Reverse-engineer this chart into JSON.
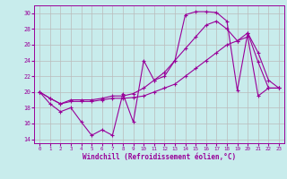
{
  "xlabel": "Windchill (Refroidissement éolien,°C)",
  "bg_color": "#c8ecec",
  "grid_color": "#aaaaaa",
  "line_color": "#990099",
  "xlim": [
    -0.5,
    23.5
  ],
  "ylim": [
    13.5,
    31.0
  ],
  "xticks": [
    0,
    1,
    2,
    3,
    4,
    5,
    6,
    7,
    8,
    9,
    10,
    11,
    12,
    13,
    14,
    15,
    16,
    17,
    18,
    19,
    20,
    21,
    22,
    23
  ],
  "yticks": [
    14,
    16,
    18,
    20,
    22,
    24,
    26,
    28,
    30
  ],
  "line1_y": [
    20.0,
    18.5,
    17.5,
    18.0,
    16.2,
    14.5,
    15.2,
    14.5,
    19.8,
    16.2,
    24.0,
    21.5,
    22.0,
    24.0,
    29.8,
    30.2,
    30.2,
    30.1,
    29.0,
    20.2,
    27.5,
    23.8,
    20.5,
    20.5
  ],
  "line2_y": [
    20.0,
    19.2,
    18.5,
    18.8,
    18.8,
    18.8,
    19.0,
    19.2,
    19.2,
    19.3,
    19.5,
    20.0,
    20.5,
    21.0,
    22.0,
    23.0,
    24.0,
    25.0,
    26.0,
    26.5,
    27.0,
    19.5,
    20.5,
    20.5
  ],
  "line3_y": [
    20.0,
    19.2,
    18.5,
    19.0,
    19.0,
    19.0,
    19.2,
    19.5,
    19.5,
    19.8,
    20.5,
    21.5,
    22.5,
    24.0,
    25.5,
    27.0,
    28.5,
    29.0,
    28.0,
    26.5,
    27.5,
    25.0,
    21.5,
    20.5
  ]
}
